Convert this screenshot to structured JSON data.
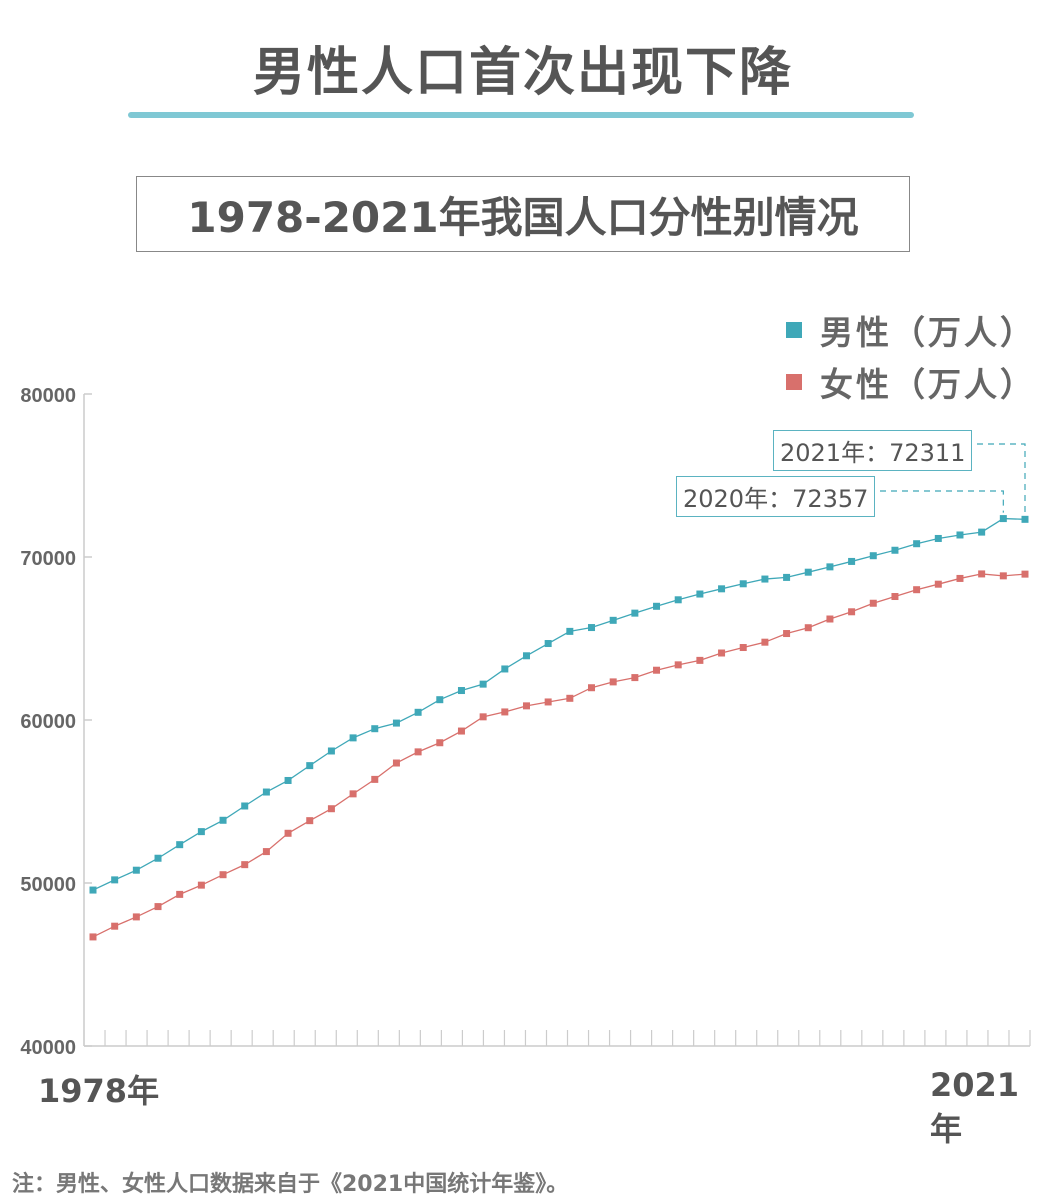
{
  "headline": "男性人口首次出现下降",
  "subtitle": "1978-2021年我国人口分性别情况",
  "legend": {
    "male": "男性（万人）",
    "female": "女性（万人）"
  },
  "colors": {
    "male": "#3fa8b8",
    "female": "#d8706c",
    "accent_rule": "#7fc8d4",
    "axis": "#cccccc"
  },
  "axis": {
    "y_ticks": [
      "80000",
      "70000",
      "60000",
      "50000",
      "40000"
    ],
    "x_start_label": "1978年",
    "x_end_label": "2021年"
  },
  "annotations": {
    "label_2021": "2021年：72311",
    "label_2020": "2020年：72357"
  },
  "note": "注：男性、女性人口数据来自于《2021中国统计年鉴》。",
  "chart_data": {
    "type": "line",
    "x": [
      1978,
      1979,
      1980,
      1981,
      1982,
      1983,
      1984,
      1985,
      1986,
      1987,
      1988,
      1989,
      1990,
      1991,
      1992,
      1993,
      1994,
      1995,
      1996,
      1997,
      1998,
      1999,
      2000,
      2001,
      2002,
      2003,
      2004,
      2005,
      2006,
      2007,
      2008,
      2009,
      2010,
      2011,
      2012,
      2013,
      2014,
      2015,
      2016,
      2017,
      2018,
      2019,
      2020,
      2021
    ],
    "ylim": [
      40000,
      80000
    ],
    "y_ticks": [
      40000,
      50000,
      60000,
      70000,
      80000
    ],
    "grid": false,
    "legend_position": "top-right",
    "series": [
      {
        "name": "男性（万人）",
        "values": [
          49567,
          50192,
          50785,
          51519,
          52352,
          53152,
          53848,
          54725,
          55581,
          56290,
          57201,
          58099,
          58904,
          59466,
          59811,
          60472,
          61246,
          61808,
          62200,
          63131,
          63940,
          64692,
          65437,
          65672,
          66115,
          66556,
          66976,
          67375,
          67728,
          68048,
          68357,
          68647,
          68748,
          69068,
          69395,
          69728,
          70079,
          70414,
          70815,
          71137,
          71351,
          71527,
          72357,
          72311
        ]
      },
      {
        "name": "女性（万人）",
        "values": [
          46692,
          47350,
          47920,
          48553,
          49302,
          49868,
          50509,
          51126,
          51927,
          53050,
          53825,
          54557,
          55469,
          56357,
          57361,
          58045,
          58605,
          59322,
          60194,
          60495,
          60868,
          61107,
          61331,
          61980,
          62338,
          62602,
          63054,
          63384,
          63658,
          64110,
          64447,
          64774,
          65305,
          65662,
          66196,
          66639,
          67163,
          67576,
          67994,
          68332,
          68685,
          68962,
          68844,
          68949
        ]
      }
    ]
  }
}
